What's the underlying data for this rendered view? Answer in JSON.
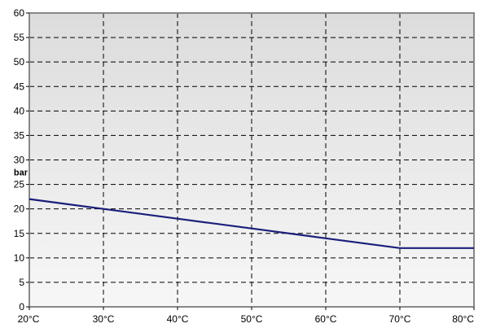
{
  "chart_data": {
    "type": "line",
    "title": "",
    "xlabel": "",
    "ylabel": "bar",
    "x_tick_labels": [
      "20°C",
      "30°C",
      "40°C",
      "50°C",
      "60°C",
      "70°C",
      "80°C"
    ],
    "y_tick_labels": [
      "0",
      "5",
      "10",
      "15",
      "20",
      "25",
      "30",
      "35",
      "40",
      "45",
      "50",
      "55",
      "60"
    ],
    "xlim": [
      20,
      80
    ],
    "ylim": [
      0,
      60
    ],
    "grid": true,
    "legend": "none",
    "series": [
      {
        "color": "#1a1f7a",
        "x": [
          20,
          30,
          40,
          50,
          60,
          70,
          80
        ],
        "y": [
          22,
          20,
          18,
          16,
          14,
          12,
          12
        ]
      }
    ],
    "background_gradient": [
      "#dcdcdc",
      "#f7f7f7"
    ],
    "grid_color": "#000000",
    "border_color": "#888888"
  }
}
